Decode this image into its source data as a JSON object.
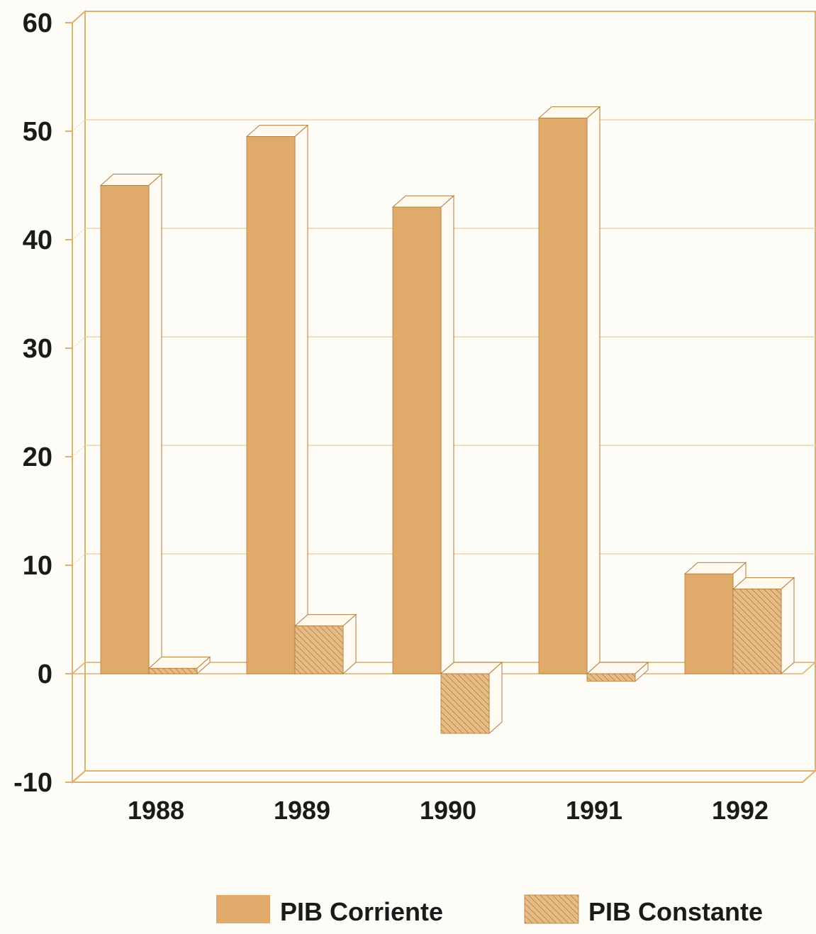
{
  "chart_data": {
    "type": "bar",
    "categories": [
      "1988",
      "1989",
      "1990",
      "1991",
      "1992"
    ],
    "series": [
      {
        "name": "PIB Corriente",
        "values": [
          45.0,
          49.5,
          43.0,
          51.2,
          9.2
        ]
      },
      {
        "name": "PIB Constante",
        "values": [
          0.5,
          4.4,
          -5.5,
          -0.7,
          7.8
        ]
      }
    ],
    "y_ticks": [
      "60",
      "50",
      "40",
      "30",
      "20",
      "10",
      "0",
      "-10"
    ],
    "ylim": [
      -10,
      60
    ],
    "grid": true,
    "legend_position": "bottom",
    "style": "3d",
    "colors": {
      "corriente": "#dfaa6a",
      "constante": "#e7bb86",
      "hatch": "#b27d3f",
      "axis": "#e0b070",
      "grid": "#edd3a8"
    }
  }
}
